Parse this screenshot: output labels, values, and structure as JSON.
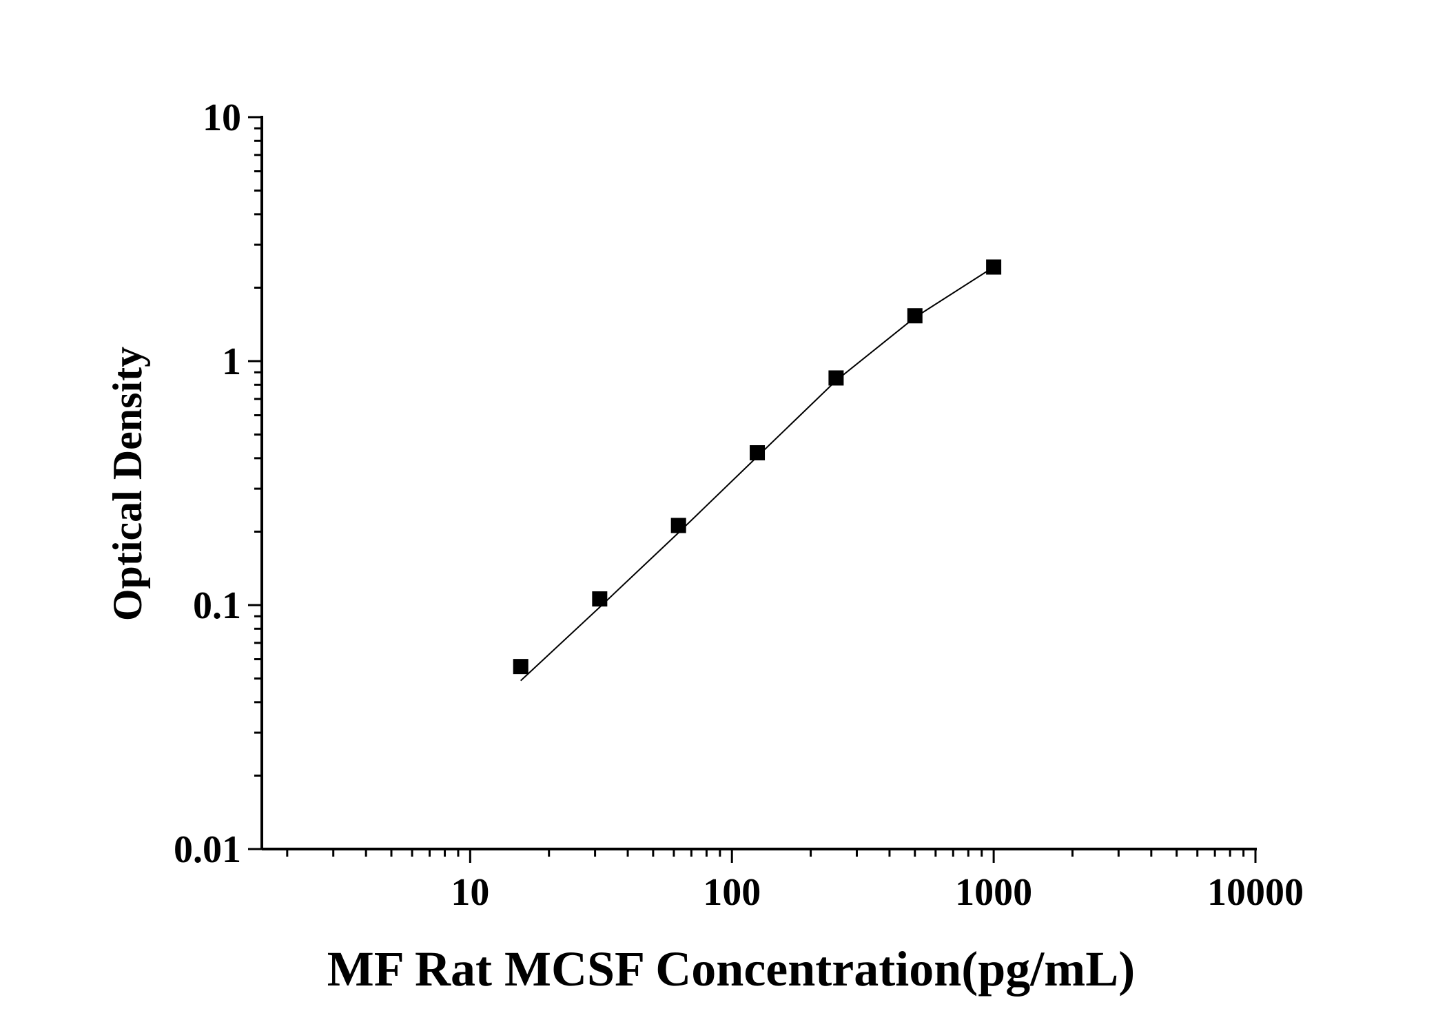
{
  "chart_data": {
    "type": "scatter",
    "title": "",
    "xlabel": "MF Rat MCSF Concentration(pg/mL)",
    "ylabel": "Optical Density",
    "xscale": "log",
    "yscale": "log",
    "xlim": [
      1.6,
      10000
    ],
    "ylim": [
      0.01,
      10
    ],
    "x_ticks": [
      "10",
      "100",
      "1000",
      "10000"
    ],
    "y_ticks": [
      "0.01",
      "0.1",
      "1",
      "10"
    ],
    "grid": false,
    "legend": "none",
    "marker": "square",
    "color": "#000000",
    "series": [
      {
        "x": [
          15.6,
          31.25,
          62.5,
          125,
          250,
          500,
          1000
        ],
        "y": [
          0.056,
          0.106,
          0.212,
          0.421,
          0.853,
          1.534,
          2.43
        ]
      }
    ],
    "fit_curve": {
      "x": [
        15.6,
        31.25,
        62.5,
        125,
        250,
        500,
        1000
      ],
      "y": [
        0.049,
        0.098,
        0.198,
        0.406,
        0.832,
        1.51,
        2.43
      ]
    }
  }
}
